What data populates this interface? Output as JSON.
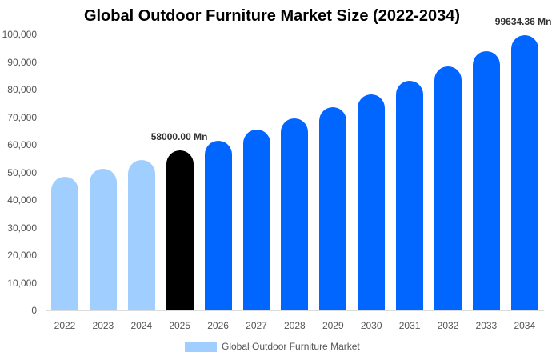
{
  "chart_data": {
    "type": "bar",
    "title": "Global Outdoor Furniture Market Size (2022-2034)",
    "xlabel": "",
    "ylabel": "",
    "ylim": [
      0,
      100000
    ],
    "yticks": [
      "0",
      "10,000",
      "20,000",
      "30,000",
      "40,000",
      "50,000",
      "60,000",
      "70,000",
      "80,000",
      "90,000",
      "100,000"
    ],
    "categories": [
      "2022",
      "2023",
      "2024",
      "2025",
      "2026",
      "2027",
      "2028",
      "2029",
      "2030",
      "2031",
      "2032",
      "2033",
      "2034"
    ],
    "series": [
      {
        "name": "Global Outdoor Furniture Market",
        "values": [
          48430,
          51430,
          54620,
          58000,
          61590,
          65400,
          69450,
          73750,
          78310,
          83160,
          88300,
          93770,
          99634.36
        ]
      }
    ],
    "bar_colors": [
      "#a0cfff",
      "#a0cfff",
      "#a0cfff",
      "#000000",
      "#0066ff",
      "#0066ff",
      "#0066ff",
      "#0066ff",
      "#0066ff",
      "#0066ff",
      "#0066ff",
      "#0066ff",
      "#0066ff"
    ],
    "annotations": [
      {
        "category": "2025",
        "text": "58000.00 Mn"
      },
      {
        "category": "2034",
        "text": "99634.36 Mn"
      }
    ],
    "legend": {
      "position": "bottom",
      "entries": [
        {
          "label": "Global Outdoor Furniture Market",
          "color": "#a0cfff"
        }
      ]
    },
    "grid": false
  },
  "labels": {
    "title": "Global Outdoor Furniture Market Size (2022-2034)",
    "legend": "Global Outdoor Furniture Market",
    "annotation_2025": "58000.00 Mn",
    "annotation_2034": "99634.36 Mn"
  }
}
